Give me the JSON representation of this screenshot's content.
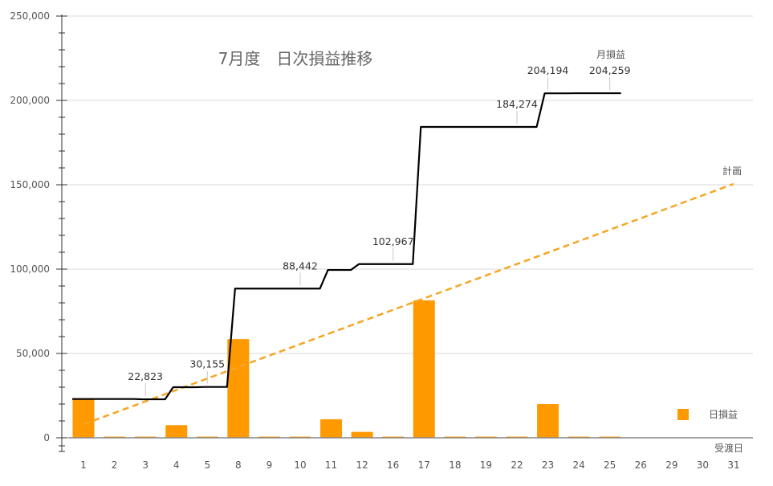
{
  "chart_data": {
    "type": "bar",
    "title": "7月度　日次損益推移",
    "xlabel": "受渡日",
    "ylabel": "",
    "ylim": [
      0,
      250000
    ],
    "yticks": [
      "0",
      "50,000",
      "100,000",
      "150,000",
      "200,000",
      "250,000"
    ],
    "ytick_values": [
      0,
      50000,
      100000,
      150000,
      200000,
      250000
    ],
    "categories": [
      "1",
      "2",
      "3",
      "4",
      "5",
      "8",
      "9",
      "10",
      "11",
      "12",
      "16",
      "17",
      "18",
      "19",
      "22",
      "23",
      "24",
      "25",
      "26",
      "29",
      "30",
      "31"
    ],
    "grid": true,
    "legend": {
      "position": "right",
      "entries": [
        "日損益"
      ]
    },
    "series": [
      {
        "name": "日損益",
        "kind": "bar",
        "color": "#FF9900",
        "values": [
          23000,
          0,
          0,
          7500,
          0,
          58500,
          0,
          0,
          11000,
          3500,
          0,
          81500,
          0,
          0,
          0,
          20000,
          0,
          0,
          null,
          null,
          null,
          null
        ]
      },
      {
        "name": "月損益",
        "kind": "step-line",
        "color": "#000000",
        "values": [
          23000,
          23000,
          22823,
          30000,
          30155,
          88442,
          88442,
          88442,
          99500,
          102967,
          102967,
          184274,
          184274,
          184274,
          184274,
          204194,
          204259,
          204259,
          null,
          null,
          null,
          null
        ],
        "data_labels": [
          {
            "category": "3",
            "text": "22,823"
          },
          {
            "category": "5",
            "text": "30,155"
          },
          {
            "category": "10",
            "text": "88,442"
          },
          {
            "category": "16",
            "text": "102,967"
          },
          {
            "category": "22",
            "text": "184,274"
          },
          {
            "category": "23",
            "text": "204,194"
          },
          {
            "category": "25",
            "text": "204,259"
          }
        ],
        "series_label": "月損益"
      },
      {
        "name": "計画",
        "kind": "dashed-line",
        "color": "#F5A623",
        "start": {
          "category": "1",
          "value": 8000
        },
        "end": {
          "category": "31",
          "value": 150500
        },
        "series_label": "計画"
      }
    ]
  }
}
